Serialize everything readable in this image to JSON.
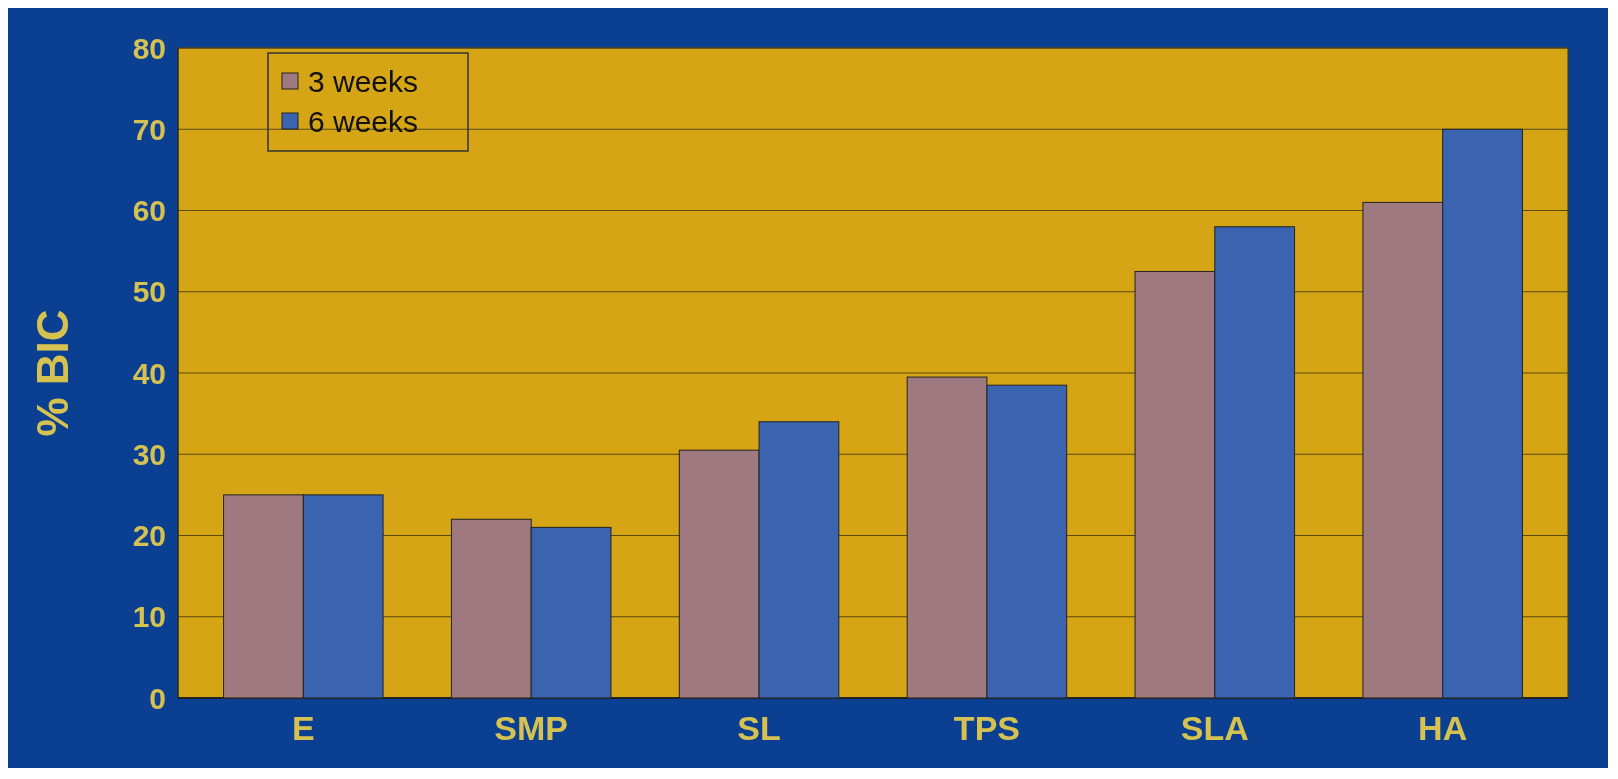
{
  "chart_data": {
    "type": "bar",
    "ylabel": "% BIC",
    "categories": [
      "E",
      "SMP",
      "SL",
      "TPS",
      "SLA",
      "HA"
    ],
    "series": [
      {
        "name": "3 weeks",
        "color": "#9e7a80",
        "values": [
          25,
          22,
          30.5,
          39.5,
          52.5,
          61
        ]
      },
      {
        "name": "6 weeks",
        "color": "#3a64b0",
        "values": [
          25,
          21,
          34,
          38.5,
          58,
          70
        ]
      }
    ],
    "ylim": [
      0,
      80
    ],
    "yticks": [
      0,
      10,
      20,
      30,
      40,
      50,
      60,
      70,
      80
    ],
    "grid": "y",
    "legend": "top left"
  }
}
